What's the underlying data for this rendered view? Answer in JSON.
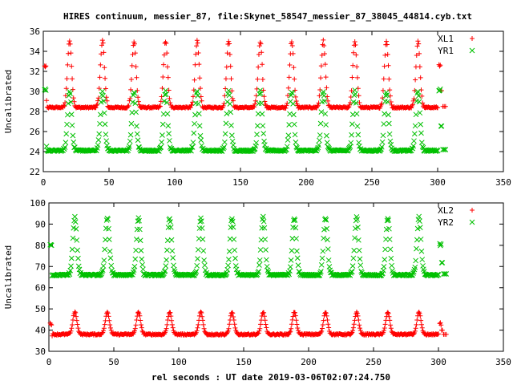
{
  "title": "HIRES continuum, messier_87, file:Skynet_58547_messier_87_38045_44814.cyb.txt",
  "xlabel": "rel seconds : UT date 2019-03-06T02:07:24.750",
  "colors": {
    "xl": "#ff0000",
    "yr": "#00c000"
  },
  "chart_data": [
    {
      "type": "scatter",
      "ylabel": "Uncalibrated",
      "xlim": [
        0,
        350
      ],
      "ylim": [
        22,
        36
      ],
      "xticks": [
        0,
        50,
        100,
        150,
        200,
        250,
        300,
        350
      ],
      "yticks": [
        22,
        24,
        26,
        28,
        30,
        32,
        34,
        36
      ],
      "legend_position": "top-right",
      "grid": false,
      "series": [
        {
          "name": "XL1",
          "marker": "plus",
          "color": "#ff0000",
          "baseline": 28.4,
          "peak": 35.0,
          "edge_start": 32.5,
          "edge_end": 32.6,
          "end_value": 28.5,
          "peaks_x": [
            20,
            45,
            69,
            93,
            117,
            141,
            165,
            189,
            213,
            237,
            261,
            285
          ]
        },
        {
          "name": "YR1",
          "marker": "cross",
          "color": "#00c000",
          "baseline": 24.1,
          "peak": 30.0,
          "edge_start": 30.2,
          "edge_end": 30.2,
          "end_value": 24.2,
          "peaks_x": [
            20,
            45,
            69,
            93,
            117,
            141,
            165,
            189,
            213,
            237,
            261,
            285
          ]
        }
      ]
    },
    {
      "type": "scatter",
      "ylabel": "Uncalibrated",
      "xlim": [
        0,
        350
      ],
      "ylim": [
        30,
        100
      ],
      "xticks": [
        0,
        50,
        100,
        150,
        200,
        250,
        300,
        350
      ],
      "yticks": [
        30,
        40,
        50,
        60,
        70,
        80,
        90,
        100
      ],
      "legend_position": "top-right",
      "grid": false,
      "series": [
        {
          "name": "XL2",
          "marker": "plus",
          "color": "#ff0000",
          "baseline": 38.0,
          "peak": 48.5,
          "edge_start": 43.0,
          "edge_end": 43.0,
          "end_value": 38.0,
          "peaks_x": [
            20,
            45,
            69,
            93,
            117,
            141,
            165,
            189,
            213,
            237,
            261,
            285
          ]
        },
        {
          "name": "YR2",
          "marker": "cross",
          "color": "#00c000",
          "baseline": 66.0,
          "peak": 93.0,
          "edge_start": 80.5,
          "edge_end": 80.5,
          "end_value": 66.5,
          "peaks_x": [
            20,
            45,
            69,
            93,
            117,
            141,
            165,
            189,
            213,
            237,
            261,
            285
          ]
        }
      ]
    }
  ]
}
